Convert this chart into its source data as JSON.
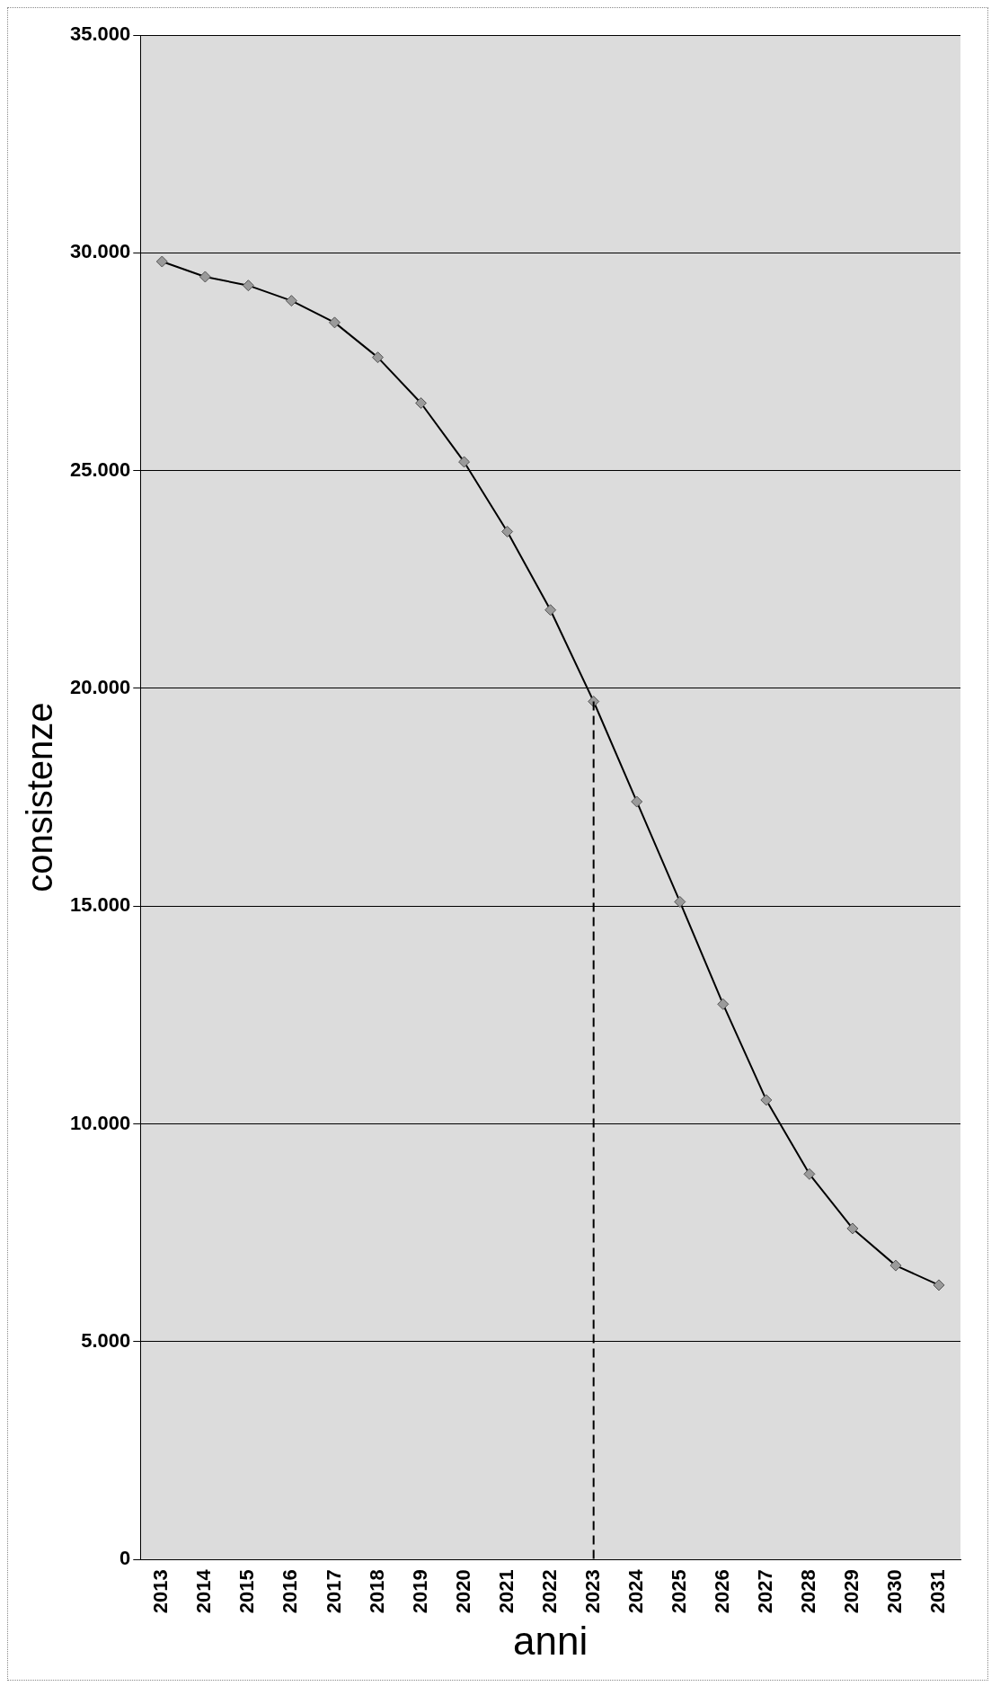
{
  "chart_data": {
    "type": "line",
    "xlabel": "anni",
    "ylabel": "consistenze",
    "categories": [
      "2013",
      "2014",
      "2015",
      "2016",
      "2017",
      "2018",
      "2019",
      "2020",
      "2021",
      "2022",
      "2023",
      "2024",
      "2025",
      "2026",
      "2027",
      "2028",
      "2029",
      "2030",
      "2031"
    ],
    "series": [
      {
        "color": "#000000",
        "values": [
          29800,
          29450,
          29250,
          28900,
          28400,
          27600,
          26550,
          25200,
          23600,
          21800,
          19700,
          17400,
          15100,
          12750,
          10550,
          8850,
          7600,
          6750,
          6300
        ]
      }
    ],
    "ylim": [
      0,
      35000
    ],
    "yticks": [
      0,
      {
        "value": 5000,
        "label": "5.000"
      },
      {
        "value": 10000,
        "label": "10.000"
      },
      {
        "value": 15000,
        "label": "15.000"
      },
      {
        "value": 20000,
        "label": "20.000"
      },
      {
        "value": 25000,
        "label": "25.000"
      },
      {
        "value": 30000,
        "label": "30.000"
      },
      {
        "value": 35000,
        "label": "35.000"
      }
    ],
    "grid": "y",
    "legend": false,
    "marker": "diamond",
    "line_style": "solid",
    "ref_lines": [
      {
        "axis": "x",
        "value": "2023",
        "line_style": "dashed",
        "color": "#000000"
      }
    ]
  }
}
